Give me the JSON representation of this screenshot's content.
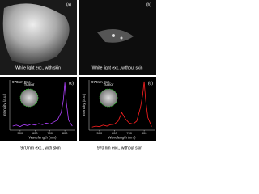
{
  "photos": [
    {
      "label": "(a)",
      "caption": "White light exc., with skin"
    },
    {
      "label": "(b)",
      "caption": "White light exc., without skin"
    }
  ],
  "chart_data": [
    {
      "type": "line",
      "panel_label": "(c)",
      "annotation": "970nm Exc.",
      "inset_label": "Tumor",
      "caption": "970 nm exc., with skin",
      "x_label": "Wavelength (nm)",
      "y_label": "Intensity (a.u.)",
      "x": [
        450,
        475,
        500,
        525,
        550,
        575,
        600,
        625,
        650,
        675,
        700,
        725,
        750,
        775,
        790,
        800,
        810,
        825,
        850
      ],
      "series": [
        {
          "color": "#b040ff",
          "values": [
            0.08,
            0.1,
            0.07,
            0.11,
            0.09,
            0.12,
            0.1,
            0.13,
            0.11,
            0.14,
            0.12,
            0.16,
            0.2,
            0.35,
            0.6,
            0.95,
            0.55,
            0.2,
            0.08
          ]
        }
      ],
      "xlim": [
        430,
        870
      ],
      "ylim": [
        0,
        1
      ],
      "xticks": [
        500,
        600,
        700,
        800
      ]
    },
    {
      "type": "line",
      "panel_label": "(d)",
      "annotation": "970nm Exc.",
      "inset_label": "Tumor",
      "caption": "970 nm exc., without skin",
      "x_label": "Wavelength (nm)",
      "y_label": "Intensity (a.u.)",
      "x": [
        450,
        475,
        500,
        525,
        550,
        575,
        600,
        625,
        650,
        675,
        700,
        725,
        750,
        775,
        790,
        800,
        810,
        825,
        850
      ],
      "series": [
        {
          "color": "#ff2020",
          "values": [
            0.06,
            0.08,
            0.07,
            0.1,
            0.08,
            0.11,
            0.12,
            0.18,
            0.35,
            0.22,
            0.14,
            0.12,
            0.18,
            0.45,
            0.7,
            0.97,
            0.6,
            0.25,
            0.07
          ]
        }
      ],
      "xlim": [
        430,
        870
      ],
      "ylim": [
        0,
        1
      ],
      "xticks": [
        500,
        600,
        700,
        800
      ]
    }
  ]
}
